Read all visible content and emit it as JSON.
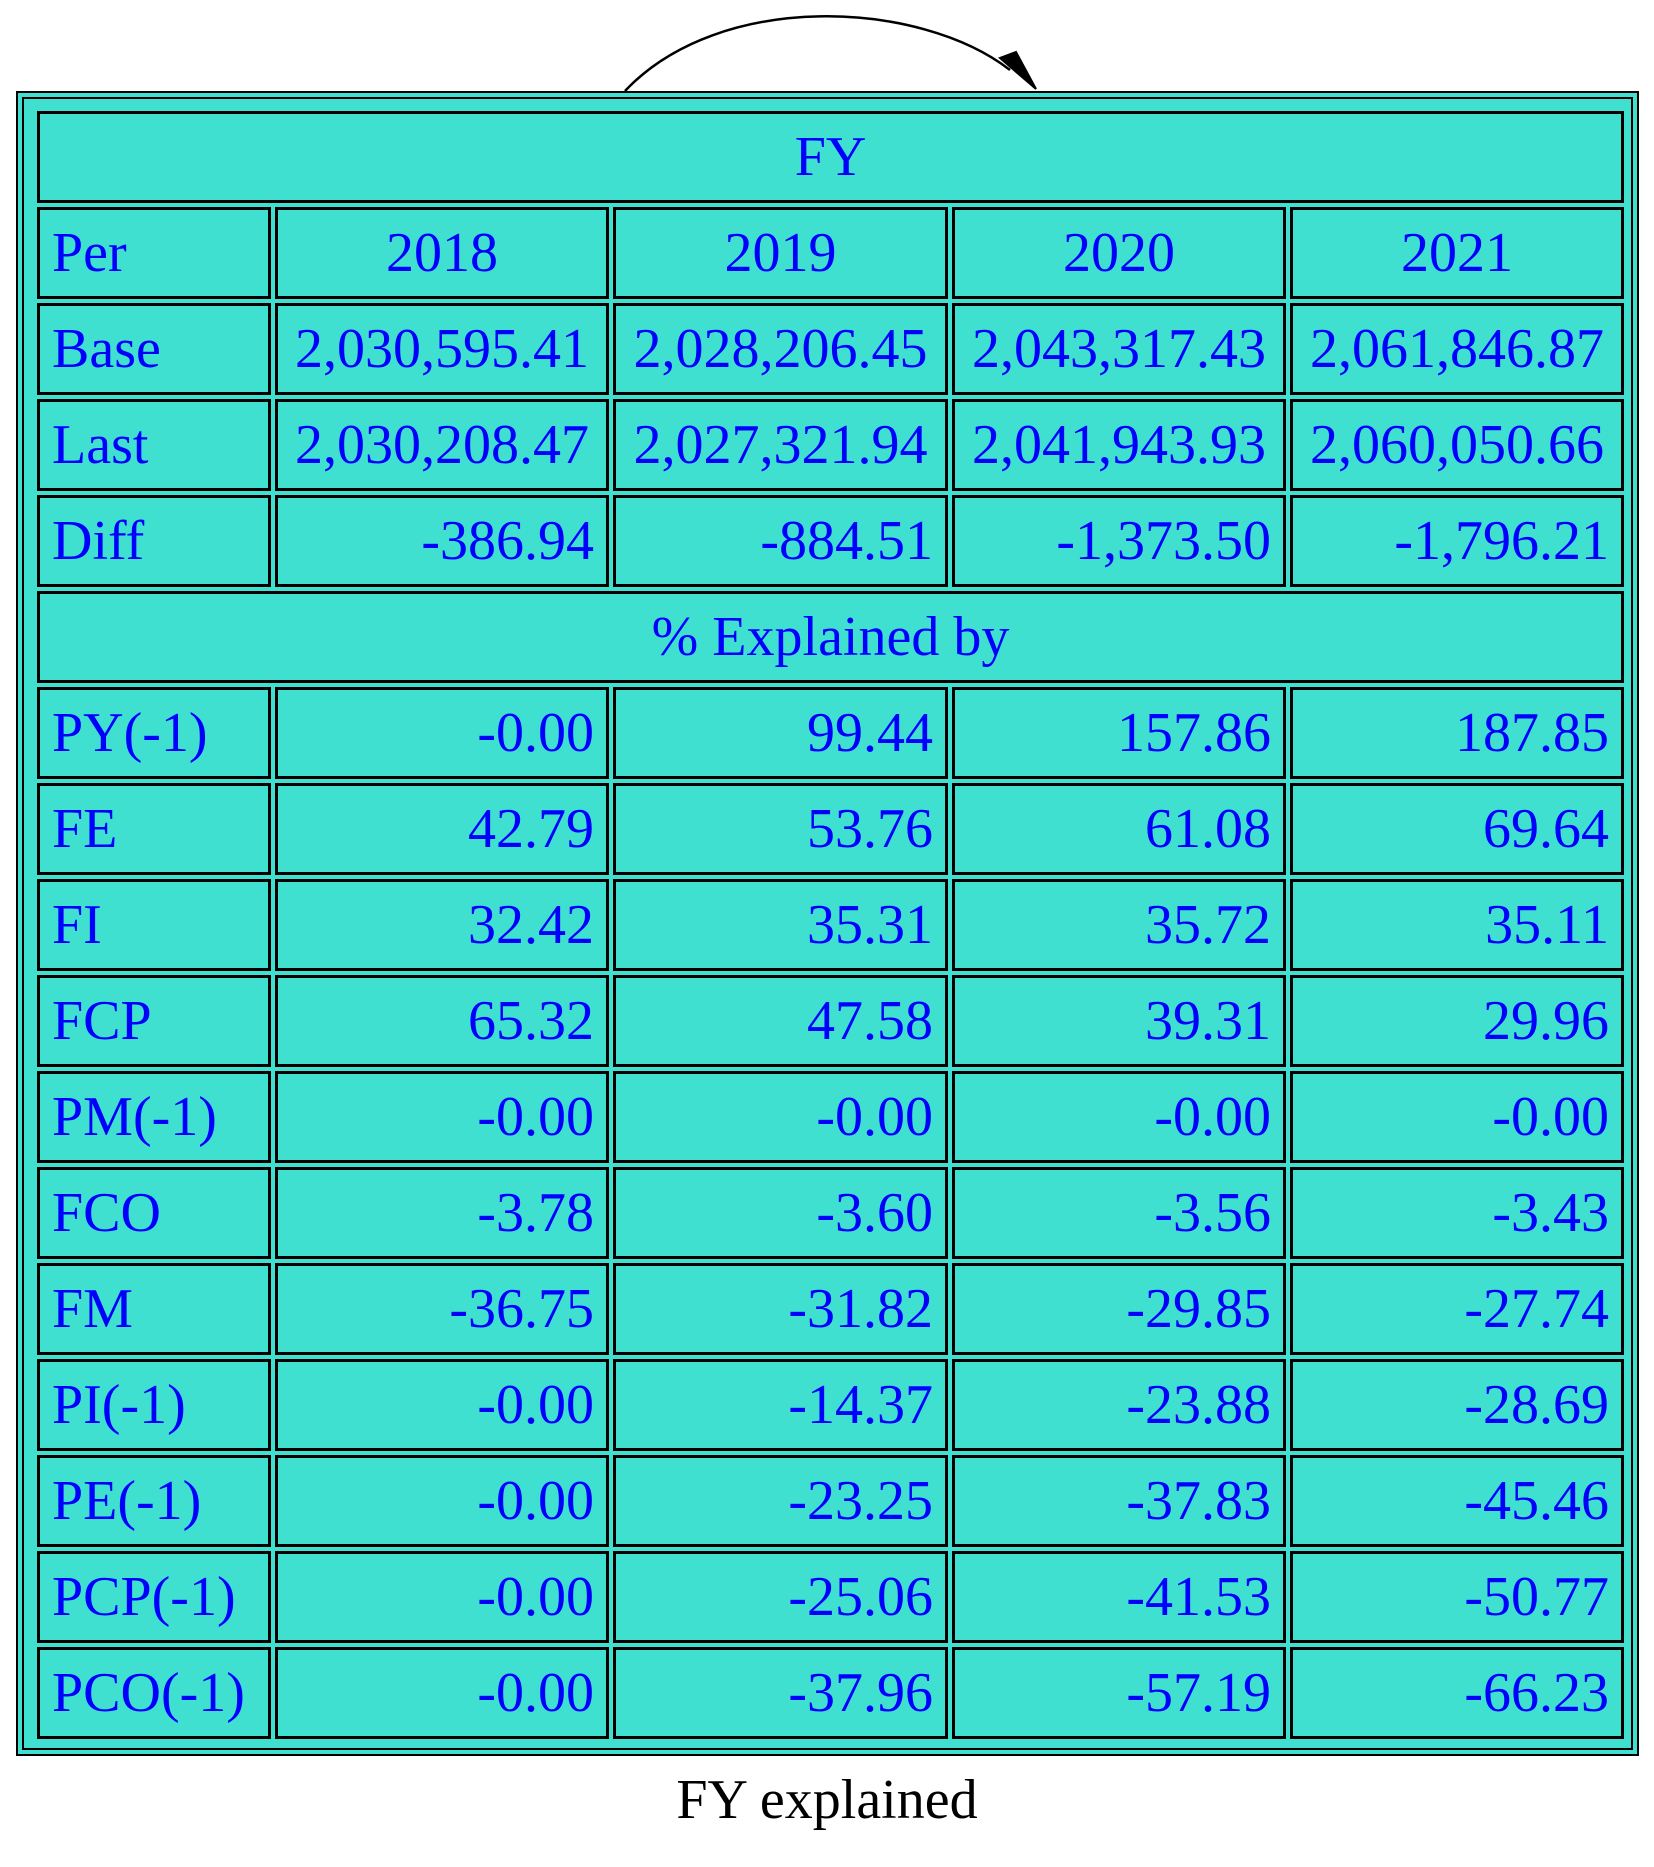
{
  "table": {
    "title": "FY",
    "header_label": "Per",
    "years": [
      "2018",
      "2019",
      "2020",
      "2021"
    ],
    "summary_rows": [
      {
        "label": "Base",
        "values": [
          "2,030,595.41",
          "2,028,206.45",
          "2,043,317.43",
          "2,061,846.87"
        ],
        "align": "center"
      },
      {
        "label": "Last",
        "values": [
          "2,030,208.47",
          "2,027,321.94",
          "2,041,943.93",
          "2,060,050.66"
        ],
        "align": "center"
      },
      {
        "label": "Diff",
        "values": [
          "-386.94",
          "-884.51",
          "-1,373.50",
          "-1,796.21"
        ],
        "align": "right"
      }
    ],
    "section_label": "% Explained by",
    "explained_rows": [
      {
        "label": "PY(-1)",
        "values": [
          "-0.00",
          "99.44",
          "157.86",
          "187.85"
        ]
      },
      {
        "label": "FE",
        "values": [
          "42.79",
          "53.76",
          "61.08",
          "69.64"
        ]
      },
      {
        "label": "FI",
        "values": [
          "32.42",
          "35.31",
          "35.72",
          "35.11"
        ]
      },
      {
        "label": "FCP",
        "values": [
          "65.32",
          "47.58",
          "39.31",
          "29.96"
        ]
      },
      {
        "label": "PM(-1)",
        "values": [
          "-0.00",
          "-0.00",
          "-0.00",
          "-0.00"
        ]
      },
      {
        "label": "FCO",
        "values": [
          "-3.78",
          "-3.60",
          "-3.56",
          "-3.43"
        ]
      },
      {
        "label": "FM",
        "values": [
          "-36.75",
          "-31.82",
          "-29.85",
          "-27.74"
        ]
      },
      {
        "label": "PI(-1)",
        "values": [
          "-0.00",
          "-14.37",
          "-23.88",
          "-28.69"
        ]
      },
      {
        "label": "PE(-1)",
        "values": [
          "-0.00",
          "-23.25",
          "-37.83",
          "-45.46"
        ]
      },
      {
        "label": "PCP(-1)",
        "values": [
          "-0.00",
          "-25.06",
          "-41.53",
          "-50.77"
        ]
      },
      {
        "label": "PCO(-1)",
        "values": [
          "-0.00",
          "-37.96",
          "-57.19",
          "-66.23"
        ]
      }
    ]
  },
  "caption": "FY explained",
  "colors": {
    "fill": "#40e0d0",
    "text": "#0000ff",
    "border": "#000000"
  }
}
